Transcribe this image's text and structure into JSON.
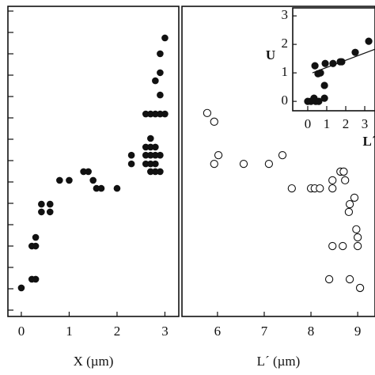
{
  "chart_data": [
    {
      "type": "scatter",
      "marker": "filled",
      "color": "#111111",
      "xlabel": "X (µm)",
      "xlim": [
        -0.28,
        3.29
      ],
      "ylim": [
        0,
        10
      ],
      "xticks": [
        0,
        1,
        2,
        3
      ],
      "x": [
        0,
        0.22,
        0.3,
        0.22,
        0.3,
        0.3,
        0.42,
        0.42,
        0.6,
        0.6,
        0.8,
        1.0,
        1.3,
        1.4,
        1.5,
        1.57,
        1.67,
        2.0,
        2.3,
        2.3,
        2.6,
        2.6,
        2.6,
        2.6,
        2.7,
        2.7,
        2.7,
        2.7,
        2.7,
        2.7,
        2.8,
        2.8,
        2.8,
        2.8,
        2.8,
        2.8,
        2.9,
        2.9,
        2.9,
        2.9,
        2.9,
        2.9,
        3.0,
        3.0
      ],
      "y": [
        0.92,
        1.2,
        1.2,
        2.27,
        2.27,
        2.55,
        3.37,
        3.62,
        3.62,
        3.37,
        4.39,
        4.39,
        4.67,
        4.67,
        4.39,
        4.13,
        4.13,
        4.13,
        4.92,
        5.2,
        6.53,
        5.46,
        5.2,
        4.92,
        6.53,
        5.74,
        5.46,
        5.2,
        4.92,
        4.67,
        7.6,
        6.53,
        5.46,
        5.2,
        4.92,
        4.67,
        8.47,
        7.86,
        7.14,
        6.53,
        5.2,
        4.67,
        8.98,
        6.53
      ]
    },
    {
      "type": "scatter",
      "marker": "open",
      "color": "#111111",
      "xlabel": "L´ (µm)",
      "xlim": [
        5.24,
        9.37
      ],
      "ylim": [
        0,
        10
      ],
      "xticks": [
        6,
        7,
        8,
        9
      ],
      "x": [
        5.78,
        5.93,
        6.02,
        5.93,
        6.56,
        7.1,
        7.39,
        7.59,
        8.0,
        8.08,
        8.19,
        8.46,
        8.46,
        8.63,
        8.7,
        8.73,
        8.81,
        8.83,
        8.93,
        8.46,
        8.68,
        9.0,
        9.0,
        8.97,
        8.39,
        8.83,
        9.05
      ],
      "y": [
        6.56,
        6.28,
        5.2,
        4.92,
        4.92,
        4.92,
        5.2,
        4.13,
        4.13,
        4.13,
        4.13,
        4.39,
        4.13,
        4.67,
        4.67,
        4.39,
        3.37,
        3.62,
        3.83,
        2.27,
        2.27,
        2.27,
        2.55,
        2.81,
        1.2,
        1.2,
        0.92
      ]
    },
    {
      "type": "scatter",
      "marker": "filled",
      "color": "#111111",
      "xlabel": "L´",
      "ylabel": "U",
      "xlim": [
        -0.79,
        3.54
      ],
      "ylim": [
        -0.33,
        3.28
      ],
      "xticks": [
        0,
        1,
        2,
        3
      ],
      "yticks": [
        0,
        1,
        2,
        3
      ],
      "x": [
        0,
        0.17,
        0.33,
        0.42,
        0.58,
        0.38,
        0.54,
        0.67,
        0.88,
        0.88,
        0.92,
        1.33,
        1.79,
        1.71,
        2.5,
        3.21
      ],
      "y": [
        0,
        0,
        0.11,
        0,
        0,
        1.25,
        0.97,
        1.0,
        0.11,
        0.56,
        1.33,
        1.33,
        1.39,
        1.39,
        1.72,
        2.11
      ],
      "fit": {
        "x": [
          0.25,
          3.54
        ],
        "y": [
          1.0,
          1.83
        ]
      }
    }
  ]
}
